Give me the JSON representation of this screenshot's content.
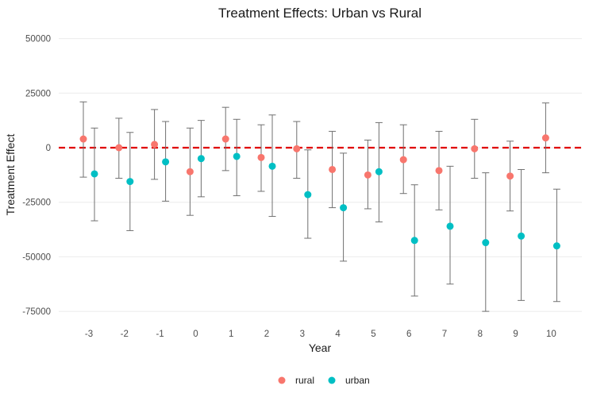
{
  "chart_data": {
    "type": "scatter",
    "title": "Treatment Effects: Urban vs Rural",
    "xlabel": "Year",
    "ylabel": "Treatment Effect",
    "categories": [
      "-3",
      "-2",
      "-1",
      "0",
      "1",
      "2",
      "3",
      "4",
      "5",
      "6",
      "7",
      "8",
      "9",
      "10"
    ],
    "y_ticks": [
      50000,
      25000,
      0,
      -25000,
      -50000,
      -75000
    ],
    "y_tick_labels": [
      "50000",
      "25000",
      "0",
      "-25000",
      "-50000",
      "-75000"
    ],
    "ylim": [
      -80000,
      55000
    ],
    "grid": true,
    "legend_position": "bottom",
    "reference_line": {
      "y": 0,
      "style": "dashed",
      "color": "#e00000"
    },
    "series": [
      {
        "name": "rural",
        "color": "#f8766d",
        "values": [
          4000,
          0,
          1500,
          -11000,
          4000,
          -4500,
          -500,
          -10000,
          -12500,
          -5500,
          -10500,
          -500,
          -13000,
          4500
        ],
        "ci_low": [
          -13500,
          -14000,
          -14500,
          -31000,
          -10500,
          -20000,
          -14000,
          -27500,
          -28000,
          -21000,
          -28500,
          -14000,
          -29000,
          -11500
        ],
        "ci_high": [
          21000,
          13500,
          17500,
          9000,
          18500,
          10500,
          12000,
          7500,
          3500,
          10500,
          7500,
          13000,
          3000,
          20500
        ]
      },
      {
        "name": "urban",
        "color": "#00bfc4",
        "values": [
          -12000,
          -15500,
          -6500,
          -5000,
          -4000,
          -8500,
          -21500,
          -27500,
          -11000,
          -42500,
          -36000,
          -43500,
          -40500,
          -45000
        ],
        "ci_low": [
          -33500,
          -38000,
          -24500,
          -22500,
          -22000,
          -31500,
          -41500,
          -52000,
          -34000,
          -68000,
          -62500,
          -75000,
          -70000,
          -70500
        ],
        "ci_high": [
          9000,
          7000,
          12000,
          12500,
          13000,
          15000,
          -1000,
          -2500,
          11500,
          -17000,
          -8500,
          -11500,
          -10000,
          -19000
        ]
      }
    ]
  }
}
